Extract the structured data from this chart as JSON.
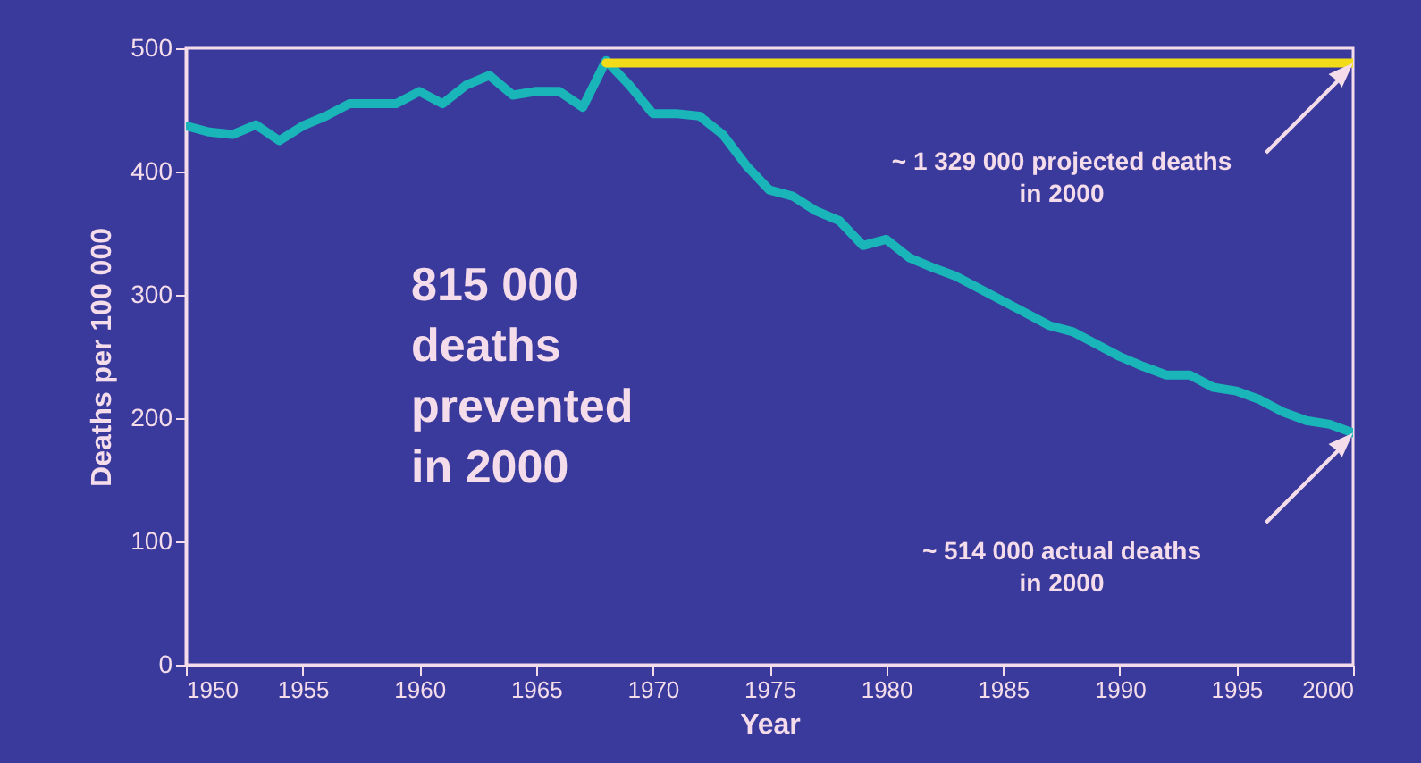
{
  "chart_data": {
    "type": "line",
    "xlabel": "Year",
    "ylabel": "Deaths per 100 000",
    "x": [
      1950,
      1951,
      1952,
      1953,
      1954,
      1955,
      1956,
      1957,
      1958,
      1959,
      1960,
      1961,
      1962,
      1963,
      1964,
      1965,
      1966,
      1967,
      1968,
      1969,
      1970,
      1971,
      1972,
      1973,
      1974,
      1975,
      1976,
      1977,
      1978,
      1979,
      1980,
      1981,
      1982,
      1983,
      1984,
      1985,
      1986,
      1987,
      1988,
      1989,
      1990,
      1991,
      1992,
      1993,
      1994,
      1995,
      1996,
      1997,
      1998,
      1999,
      2000
    ],
    "series": [
      {
        "color": "#19b5b8",
        "values": [
          437,
          432,
          430,
          438,
          425,
          437,
          445,
          455,
          455,
          455,
          465,
          455,
          470,
          478,
          462,
          465,
          465,
          452,
          490,
          470,
          447,
          447,
          445,
          430,
          405,
          385,
          380,
          368,
          360,
          340,
          345,
          330,
          322,
          315,
          305,
          295,
          285,
          275,
          270,
          260,
          250,
          242,
          235,
          235,
          225,
          222,
          215,
          205,
          198,
          195,
          188
        ]
      },
      {
        "color": "#f2dc1a",
        "x": [
          1968,
          2000
        ],
        "values": [
          488,
          488
        ]
      }
    ],
    "xlim": [
      1950,
      2000
    ],
    "xticks": [
      1950,
      1955,
      1960,
      1965,
      1970,
      1975,
      1980,
      1985,
      1990,
      1995,
      2000
    ],
    "ylim": [
      0,
      500
    ],
    "yticks": [
      0,
      100,
      200,
      300,
      400,
      500
    ],
    "grid": false,
    "annotations": [
      "815 000\ndeaths\nprevented\nin 2000",
      "~ 1 329 000 projected deaths\nin 2000",
      "~ 514 000 actual deaths\nin 2000"
    ]
  }
}
